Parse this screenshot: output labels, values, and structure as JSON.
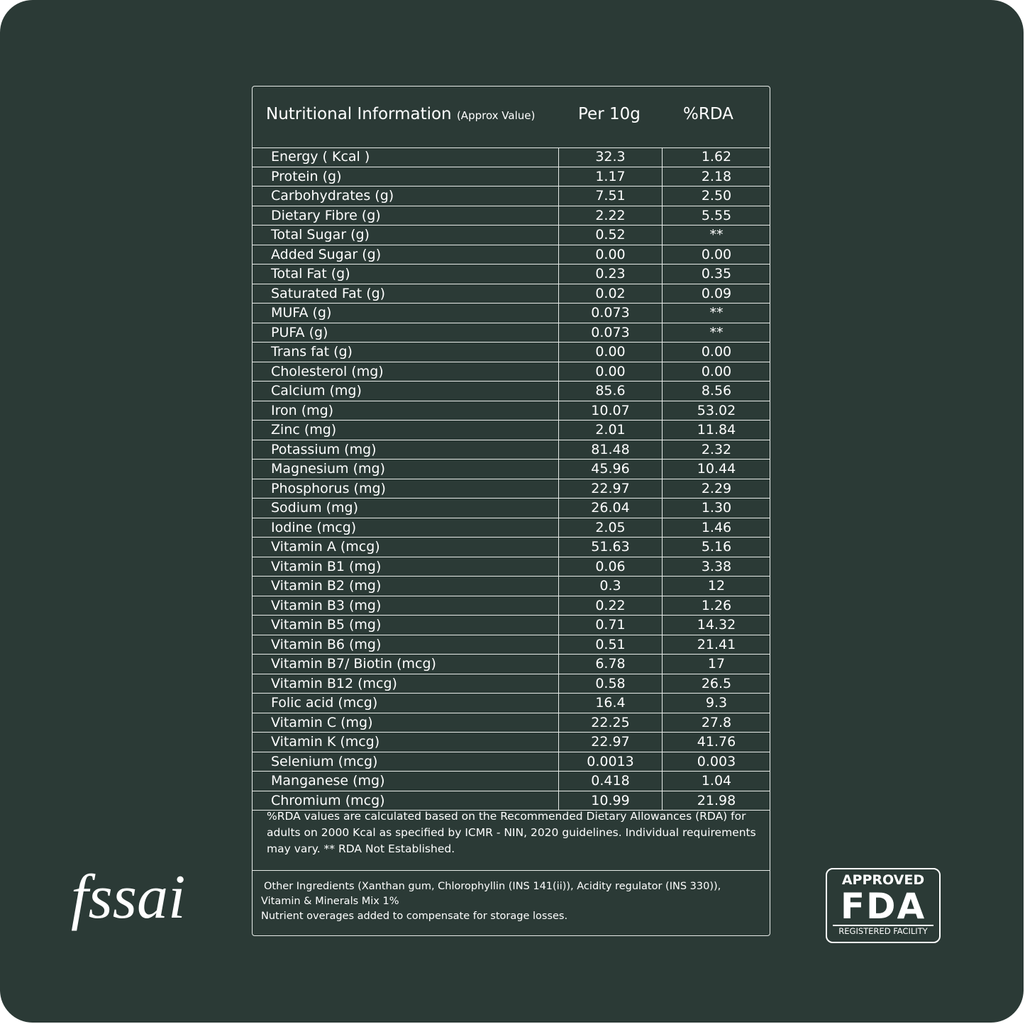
{
  "header": {
    "title": "Nutritional Information",
    "subtitle": "(Approx Value)",
    "col_per": "Per 10g",
    "col_rda": "%RDA"
  },
  "table": {
    "rows": [
      [
        "Energy ( Kcal )",
        "32.3",
        "1.62"
      ],
      [
        "Protein (g)",
        "1.17",
        "2.18"
      ],
      [
        "Carbohydrates (g)",
        "7.51",
        "2.50"
      ],
      [
        "Dietary Fibre (g)",
        "2.22",
        "5.55"
      ],
      [
        "Total Sugar (g)",
        "0.52",
        "**"
      ],
      [
        "Added Sugar (g)",
        "0.00",
        "0.00"
      ],
      [
        "Total Fat (g)",
        "0.23",
        "0.35"
      ],
      [
        "Saturated Fat (g)",
        "0.02",
        "0.09"
      ],
      [
        "MUFA (g)",
        "0.073",
        "**"
      ],
      [
        "PUFA (g)",
        "0.073",
        "**"
      ],
      [
        "Trans fat (g)",
        "0.00",
        "0.00"
      ],
      [
        "Cholesterol (mg)",
        "0.00",
        "0.00"
      ],
      [
        "Calcium (mg)",
        "85.6",
        "8.56"
      ],
      [
        "Iron (mg)",
        "10.07",
        "53.02"
      ],
      [
        "Zinc (mg)",
        "2.01",
        "11.84"
      ],
      [
        "Potassium (mg)",
        "81.48",
        "2.32"
      ],
      [
        "Magnesium (mg)",
        "45.96",
        "10.44"
      ],
      [
        "Phosphorus (mg)",
        "22.97",
        "2.29"
      ],
      [
        "Sodium (mg)",
        "26.04",
        "1.30"
      ],
      [
        "Iodine (mcg)",
        "2.05",
        "1.46"
      ],
      [
        "Vitamin A (mcg)",
        "51.63",
        "5.16"
      ],
      [
        "Vitamin B1 (mg)",
        "0.06",
        "3.38"
      ],
      [
        "Vitamin B2 (mg)",
        "0.3",
        "12"
      ],
      [
        "Vitamin B3 (mg)",
        "0.22",
        "1.26"
      ],
      [
        "Vitamin B5 (mg)",
        "0.71",
        "14.32"
      ],
      [
        "Vitamin B6 (mg)",
        "0.51",
        "21.41"
      ],
      [
        "Vitamin B7/ Biotin (mcg)",
        "6.78",
        "17"
      ],
      [
        "Vitamin B12 (mcg)",
        "0.58",
        "26.5"
      ],
      [
        "Folic acid (mcg)",
        "16.4",
        "9.3"
      ],
      [
        "Vitamin C (mg)",
        "22.25",
        "27.8"
      ],
      [
        "Vitamin K (mcg)",
        "22.97",
        "41.76"
      ],
      [
        "Selenium (mcg)",
        "0.0013",
        "0.003"
      ],
      [
        "Manganese (mg)",
        "0.418",
        "1.04"
      ],
      [
        "Chromium (mcg)",
        "10.99",
        "21.98"
      ]
    ]
  },
  "note": "%RDA values are calculated based on the Recommended Dietary Allowances (RDA) for adults on 2000 Kcal as specified by ICMR - NIN, 2020 guidelines. Individual requirements may vary.  ** RDA Not Established.",
  "ingredients": [
    "Other Ingredients (Xanthan gum, Chlorophyllin (INS 141(ii)), Acidity regulator (INS 330)),",
    "Vitamin & Minerals Mix 1%",
    "Nutrient overages added to compensate for storage losses."
  ],
  "logos": {
    "fssai": "fssai",
    "fda_top": "APPROVED",
    "fda_main": "FDA",
    "fda_bottom": "REGISTERED FACILITY"
  }
}
